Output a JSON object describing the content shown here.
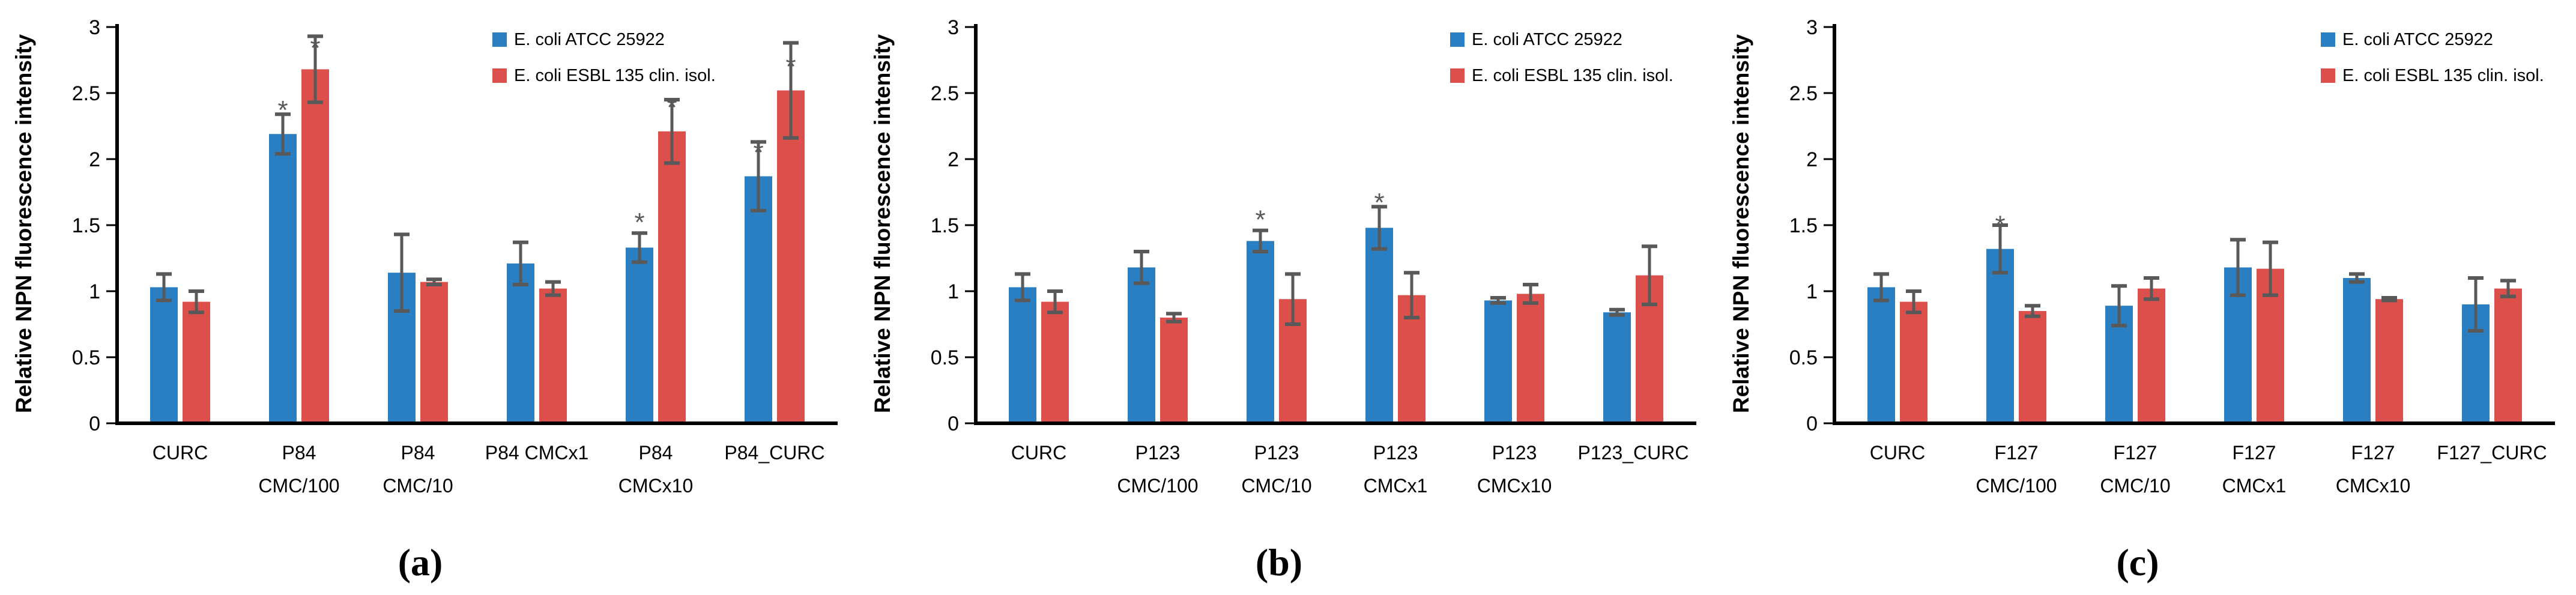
{
  "figure": {
    "y_axis_label": "Relative NPN fluorescence intensity",
    "y_ticks": [
      "0",
      "0.5",
      "1",
      "1.5",
      "2",
      "2.5",
      "3"
    ],
    "significance_marker": "*",
    "colors": {
      "series1": "#2A7FC2",
      "series2": "#DC4F4A",
      "error_bar": "#595959",
      "axis": "#000000",
      "text": "#000000"
    },
    "legend": {
      "series1_label": "E. coli ATCC 25922",
      "series2_label": "E. coli ESBL 135 clin. isol."
    }
  },
  "chart_data": [
    {
      "type": "bar",
      "panel_label": "(a)",
      "ylabel": "Relative NPN fluorescence intensity",
      "ylim": [
        0,
        3
      ],
      "y_step": 0.5,
      "grid": false,
      "legend_position": "top-right",
      "categories": [
        {
          "line1": "CURC",
          "line2": ""
        },
        {
          "line1": "P84",
          "line2": "CMC/100"
        },
        {
          "line1": "P84",
          "line2": "CMC/10"
        },
        {
          "line1": "P84 CMCx1",
          "line2": ""
        },
        {
          "line1": "P84",
          "line2": "CMCx10"
        },
        {
          "line1": "P84_CURC",
          "line2": ""
        }
      ],
      "series": [
        {
          "name": "E. coli ATCC 25922",
          "color_key": "series1",
          "values": [
            1.03,
            2.19,
            1.14,
            1.21,
            1.33,
            1.87
          ],
          "errors": [
            0.1,
            0.15,
            0.29,
            0.16,
            0.11,
            0.26
          ],
          "stars": [
            null,
            2.4,
            null,
            null,
            1.55,
            2.08
          ]
        },
        {
          "name": "E. coli ESBL 135 clin. isol.",
          "color_key": "series2",
          "values": [
            0.92,
            2.68,
            1.07,
            1.02,
            2.21,
            2.52
          ],
          "errors": [
            0.08,
            0.25,
            0.02,
            0.05,
            0.24,
            0.36
          ],
          "stars": [
            null,
            2.87,
            null,
            null,
            2.42,
            2.73
          ]
        }
      ]
    },
    {
      "type": "bar",
      "panel_label": "(b)",
      "ylabel": "Relative NPN fluorescence intensity",
      "ylim": [
        0,
        3
      ],
      "y_step": 0.5,
      "grid": false,
      "legend_position": "top-right",
      "categories": [
        {
          "line1": "CURC",
          "line2": ""
        },
        {
          "line1": "P123",
          "line2": "CMC/100"
        },
        {
          "line1": "P123",
          "line2": "CMC/10"
        },
        {
          "line1": "P123",
          "line2": "CMCx1"
        },
        {
          "line1": "P123",
          "line2": "CMCx10"
        },
        {
          "line1": "P123_CURC",
          "line2": ""
        }
      ],
      "series": [
        {
          "name": "E. coli ATCC 25922",
          "color_key": "series1",
          "values": [
            1.03,
            1.18,
            1.38,
            1.48,
            0.93,
            0.84
          ],
          "errors": [
            0.1,
            0.12,
            0.08,
            0.16,
            0.02,
            0.02
          ],
          "stars": [
            null,
            null,
            1.57,
            1.7,
            null,
            null
          ]
        },
        {
          "name": "E. coli ESBL 135 clin. isol.",
          "color_key": "series2",
          "values": [
            0.92,
            0.8,
            0.94,
            0.97,
            0.98,
            1.12
          ],
          "errors": [
            0.08,
            0.03,
            0.19,
            0.17,
            0.07,
            0.22
          ],
          "stars": [
            null,
            null,
            null,
            null,
            null,
            null
          ]
        }
      ]
    },
    {
      "type": "bar",
      "panel_label": "(c)",
      "ylabel": "Relative NPN fluorescence intensity",
      "ylim": [
        0,
        3
      ],
      "y_step": 0.5,
      "grid": false,
      "legend_position": "top-right",
      "categories": [
        {
          "line1": "CURC",
          "line2": ""
        },
        {
          "line1": "F127",
          "line2": "CMC/100"
        },
        {
          "line1": "F127",
          "line2": "CMC/10"
        },
        {
          "line1": "F127",
          "line2": "CMCx1"
        },
        {
          "line1": "F127",
          "line2": "CMCx10"
        },
        {
          "line1": "F127_CURC",
          "line2": ""
        }
      ],
      "series": [
        {
          "name": "E. coli ATCC 25922",
          "color_key": "series1",
          "values": [
            1.03,
            1.32,
            0.89,
            1.18,
            1.1,
            0.9
          ],
          "errors": [
            0.1,
            0.18,
            0.15,
            0.21,
            0.03,
            0.2
          ],
          "stars": [
            null,
            1.53,
            null,
            null,
            null,
            null
          ]
        },
        {
          "name": "E. coli ESBL 135 clin. isol.",
          "color_key": "series2",
          "values": [
            0.92,
            0.85,
            1.02,
            1.17,
            0.94,
            1.02
          ],
          "errors": [
            0.08,
            0.04,
            0.08,
            0.2,
            0.01,
            0.06
          ],
          "stars": [
            null,
            null,
            null,
            null,
            null,
            null
          ]
        }
      ]
    }
  ]
}
